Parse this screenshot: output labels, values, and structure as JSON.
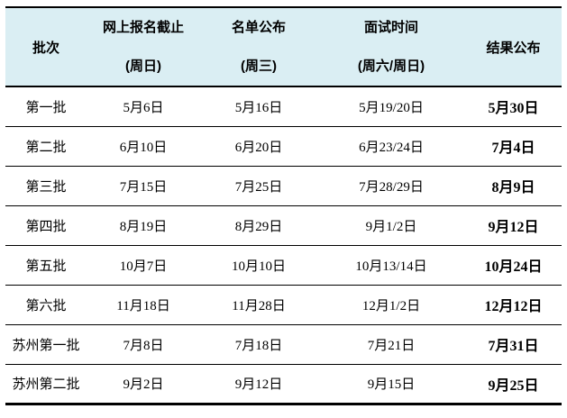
{
  "colors": {
    "header_bg": "#daeef3",
    "border": "#000000",
    "text": "#000000"
  },
  "header": {
    "batch": "批次",
    "deadline_title": "网上报名截止",
    "deadline_weekday": "(周日)",
    "list_title": "名单公布",
    "list_weekday": "(周三)",
    "interview_title": "面试时间",
    "interview_weekday": "(周六/周日)",
    "result": "结果公布"
  },
  "rows": [
    {
      "batch": "第一批",
      "deadline": "5月6日",
      "list_date": "5月16日",
      "interview": "5月19/20日",
      "result": "5月30日"
    },
    {
      "batch": "第二批",
      "deadline": "6月10日",
      "list_date": "6月20日",
      "interview": "6月23/24日",
      "result": "7月4日"
    },
    {
      "batch": "第三批",
      "deadline": "7月15日",
      "list_date": "7月25日",
      "interview": "7月28/29日",
      "result": "8月9日"
    },
    {
      "batch": "第四批",
      "deadline": "8月19日",
      "list_date": "8月29日",
      "interview": "9月1/2日",
      "result": "9月12日"
    },
    {
      "batch": "第五批",
      "deadline": "10月7日",
      "list_date": "10月10日",
      "interview": "10月13/14日",
      "result": "10月24日"
    },
    {
      "batch": "第六批",
      "deadline": "11月18日",
      "list_date": "11月28日",
      "interview": "12月1/2日",
      "result": "12月12日"
    },
    {
      "batch": "苏州第一批",
      "deadline": "7月8日",
      "list_date": "7月18日",
      "interview": "7月21日",
      "result": "7月31日"
    },
    {
      "batch": "苏州第二批",
      "deadline": "9月2日",
      "list_date": "9月12日",
      "interview": "9月15日",
      "result": "9月25日"
    }
  ]
}
